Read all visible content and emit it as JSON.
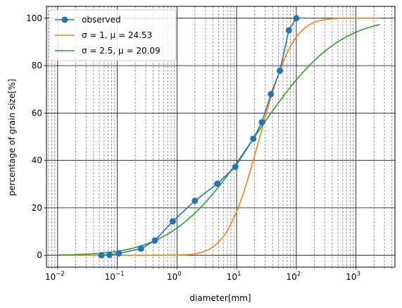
{
  "chart_data": {
    "type": "line",
    "xscale": "log",
    "xlabel": "diameter[mm]",
    "ylabel": "percentage of grain size[%]",
    "xlim": [
      0.0065,
      4500
    ],
    "ylim": [
      -5,
      105
    ],
    "grid": "on (solid major, dashed minor on x)",
    "legend_position": "top-left",
    "x_ticks": [
      0.01,
      0.1,
      1,
      10,
      100,
      1000
    ],
    "x_tick_labels": [
      {
        "base": "10",
        "exp": "−2"
      },
      {
        "base": "10",
        "exp": "−1"
      },
      {
        "base": "10",
        "exp": "0"
      },
      {
        "base": "10",
        "exp": "1"
      },
      {
        "base": "10",
        "exp": "2"
      },
      {
        "base": "10",
        "exp": "3"
      }
    ],
    "y_ticks": [
      0,
      20,
      40,
      60,
      80,
      100
    ],
    "y_tick_labels": [
      "0",
      "20",
      "40",
      "60",
      "80",
      "100"
    ],
    "series": [
      {
        "name": "observed",
        "color": "#1f77b4",
        "marker": "circle",
        "x": [
          0.054,
          0.074,
          0.106,
          0.25,
          0.425,
          0.85,
          2.0,
          4.75,
          9.5,
          19.0,
          26.5,
          37.5,
          53.0,
          75.0,
          100.0
        ],
        "y": [
          0,
          0.2,
          0.8,
          2.8,
          6.2,
          14.3,
          23.0,
          30.2,
          37.3,
          49.2,
          56.1,
          68.0,
          77.8,
          94.9,
          100
        ]
      },
      {
        "name": "σ = 1, μ = 24.53",
        "color": "#ff7f0e",
        "model": "lognormal_cdf",
        "sigma": 1,
        "mu": 24.53,
        "x_range": [
          0.01,
          2500
        ]
      },
      {
        "name": "σ = 2.5, μ = 20.09",
        "color": "#2ca02c",
        "model": "lognormal_cdf",
        "sigma": 2.5,
        "mu": 20.09,
        "x_range": [
          0.01,
          2500
        ]
      }
    ]
  }
}
